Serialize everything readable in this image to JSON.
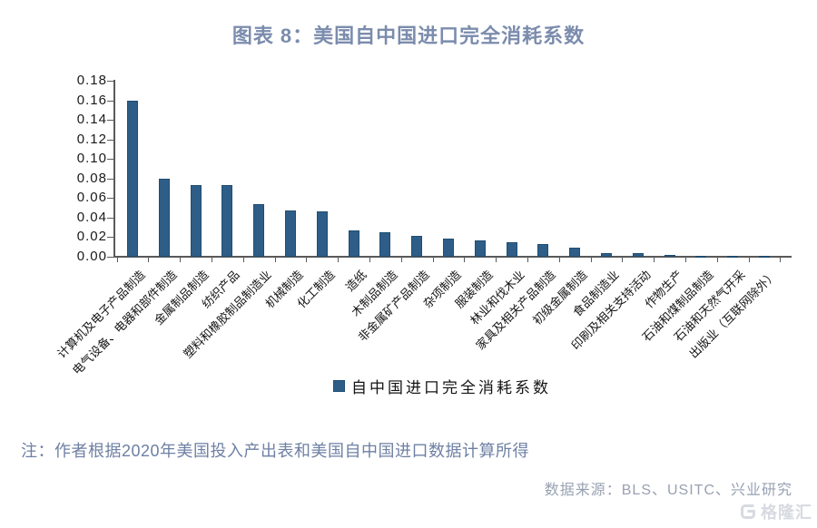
{
  "page": {
    "title": "图表 8：美国自中国进口完全消耗系数",
    "note": "注：作者根据2020年美国投入产出表和美国自中国进口数据计算所得",
    "source": "数据来源：BLS、USITC、兴业研究",
    "watermark": "格隆汇"
  },
  "chart_data": {
    "type": "bar",
    "title": "图表 8：美国自中国进口完全消耗系数",
    "legend": [
      "自中国进口完全消耗系数"
    ],
    "legend_position": "bottom",
    "grid": false,
    "categories": [
      "计算机及电子产品制造",
      "电气设备、电器和部件制造",
      "金属制品制造",
      "纺织产品",
      "塑料和橡胶制品制造业",
      "机械制造",
      "化工制造",
      "造纸",
      "木制品制造",
      "非金属矿产品制造",
      "杂项制造",
      "服装制造",
      "林业和伐木业",
      "家具及相关产品制造",
      "初级金属制造",
      "食品制造业",
      "印刷及相关支持活动",
      "作物生产",
      "石油和煤制品制造",
      "石油和天然气开采",
      "出版业（互联网除外）"
    ],
    "values": [
      0.16,
      0.08,
      0.073,
      0.073,
      0.054,
      0.047,
      0.046,
      0.027,
      0.025,
      0.021,
      0.019,
      0.017,
      0.015,
      0.013,
      0.009,
      0.004,
      0.0035,
      0.002,
      0.001,
      0.001,
      0.0005
    ],
    "ylim": [
      0,
      0.18
    ],
    "y_ticks": [
      0.0,
      0.02,
      0.04,
      0.06,
      0.08,
      0.1,
      0.12,
      0.14,
      0.16,
      0.18
    ],
    "bar_color": "#2e5e87",
    "bar_border_color": "#1f4e74",
    "axis_color": "#595959"
  }
}
